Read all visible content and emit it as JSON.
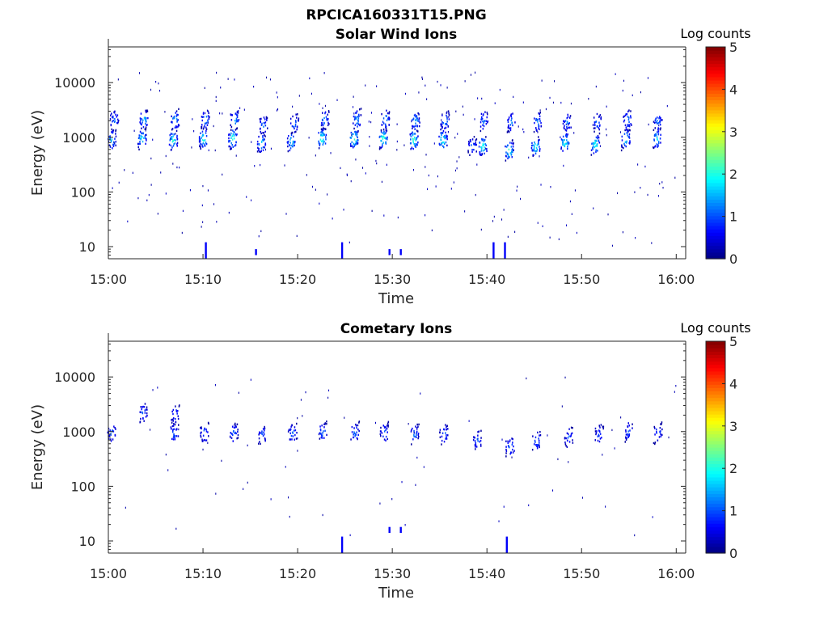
{
  "figure": {
    "title": "RPCICA160331T15.PNG"
  },
  "chart_data": [
    {
      "type": "heatmap",
      "title": "Solar Wind Ions",
      "xlabel": "Time",
      "ylabel": "Energy (eV)",
      "y_scale": "log",
      "ylim": [
        6,
        45000
      ],
      "xlim": [
        "15:00",
        "16:01"
      ],
      "x_ticks": [
        "15:00",
        "15:10",
        "15:20",
        "15:30",
        "15:40",
        "15:50",
        "16:00"
      ],
      "y_ticks": [
        "10",
        "100",
        "1000",
        "10000"
      ],
      "colorbar": {
        "label": "Log counts",
        "range": [
          0,
          5
        ],
        "ticks": [
          "0",
          "1",
          "2",
          "3",
          "4",
          "5"
        ],
        "colormap": "jet"
      },
      "grid": false,
      "sweeps_min": [
        0.2,
        3.7,
        6.8,
        9.9,
        13.1,
        16.2,
        19.3,
        22.5,
        25.7,
        28.8,
        31.9,
        35.0,
        38.2,
        41.4,
        44.5,
        47.6,
        50.8,
        53.9,
        57.1,
        59.8
      ],
      "peaks": [
        {
          "t": 0.3,
          "e": 850,
          "v": 1.8
        },
        {
          "t": 0.6,
          "e": 2000,
          "v": 1.3
        },
        {
          "t": 3.5,
          "e": 900,
          "v": 2.0
        },
        {
          "t": 3.7,
          "e": 2000,
          "v": 1.8
        },
        {
          "t": 6.8,
          "e": 850,
          "v": 2.2
        },
        {
          "t": 7.0,
          "e": 2000,
          "v": 1.6
        },
        {
          "t": 10.0,
          "e": 900,
          "v": 2.3
        },
        {
          "t": 10.2,
          "e": 2000,
          "v": 1.6
        },
        {
          "t": 13.1,
          "e": 900,
          "v": 2.4
        },
        {
          "t": 13.3,
          "e": 2000,
          "v": 1.6
        },
        {
          "t": 16.1,
          "e": 750,
          "v": 1.8
        },
        {
          "t": 16.3,
          "e": 1600,
          "v": 1.3
        },
        {
          "t": 19.3,
          "e": 800,
          "v": 1.9
        },
        {
          "t": 19.6,
          "e": 1700,
          "v": 1.3
        },
        {
          "t": 22.5,
          "e": 900,
          "v": 2.4
        },
        {
          "t": 22.8,
          "e": 2000,
          "v": 1.5
        },
        {
          "t": 25.9,
          "e": 900,
          "v": 2.5
        },
        {
          "t": 26.2,
          "e": 2000,
          "v": 1.6
        },
        {
          "t": 29.0,
          "e": 900,
          "v": 2.4
        },
        {
          "t": 29.2,
          "e": 2000,
          "v": 1.6
        },
        {
          "t": 32.2,
          "e": 850,
          "v": 2.4
        },
        {
          "t": 32.4,
          "e": 1900,
          "v": 1.6
        },
        {
          "t": 35.3,
          "e": 850,
          "v": 2.3
        },
        {
          "t": 35.5,
          "e": 1900,
          "v": 1.5
        },
        {
          "t": 38.4,
          "e": 650,
          "v": 1.3
        },
        {
          "t": 39.5,
          "e": 650,
          "v": 2.2
        },
        {
          "t": 39.6,
          "e": 1900,
          "v": 1.3
        },
        {
          "t": 42.3,
          "e": 550,
          "v": 2.3
        },
        {
          "t": 42.5,
          "e": 1800,
          "v": 1.4
        },
        {
          "t": 45.1,
          "e": 650,
          "v": 2.2
        },
        {
          "t": 45.3,
          "e": 1800,
          "v": 1.4
        },
        {
          "t": 48.2,
          "e": 750,
          "v": 2.2
        },
        {
          "t": 48.4,
          "e": 1800,
          "v": 1.3
        },
        {
          "t": 51.4,
          "e": 700,
          "v": 2.2
        },
        {
          "t": 51.6,
          "e": 1800,
          "v": 1.3
        },
        {
          "t": 54.6,
          "e": 900,
          "v": 2.0
        },
        {
          "t": 54.8,
          "e": 2000,
          "v": 1.4
        },
        {
          "t": 57.9,
          "e": 900,
          "v": 1.9
        },
        {
          "t": 58.0,
          "e": 1900,
          "v": 1.3
        }
      ],
      "scattered_counts": 260,
      "low_energy_streaks": [
        {
          "t": 10.2,
          "e": [
            6,
            12
          ]
        },
        {
          "t": 15.5,
          "e": [
            7,
            9
          ]
        },
        {
          "t": 24.6,
          "e": [
            6,
            12
          ]
        },
        {
          "t": 29.6,
          "e": [
            7,
            9
          ]
        },
        {
          "t": 30.8,
          "e": [
            7,
            9
          ]
        },
        {
          "t": 40.6,
          "e": [
            6,
            12
          ]
        },
        {
          "t": 41.8,
          "e": [
            6,
            12
          ]
        }
      ]
    },
    {
      "type": "heatmap",
      "title": "Cometary Ions",
      "xlabel": "Time",
      "ylabel": "Energy (eV)",
      "y_scale": "log",
      "ylim": [
        6,
        45000
      ],
      "xlim": [
        "15:00",
        "16:01"
      ],
      "x_ticks": [
        "15:00",
        "15:10",
        "15:20",
        "15:30",
        "15:40",
        "15:50",
        "16:00"
      ],
      "y_ticks": [
        "10",
        "100",
        "1000",
        "10000"
      ],
      "colorbar": {
        "label": "Log counts",
        "range": [
          0,
          5
        ],
        "ticks": [
          "0",
          "1",
          "2",
          "3",
          "4",
          "5"
        ],
        "colormap": "jet"
      },
      "grid": false,
      "sweeps_min": [
        0.2,
        3.7,
        6.8,
        9.9,
        13.1,
        16.2,
        19.3,
        22.5,
        25.7,
        28.8,
        31.9,
        35.0,
        38.2,
        41.4,
        44.5,
        47.6,
        50.8,
        53.9,
        57.1,
        59.8
      ],
      "peaks": [
        {
          "t": 0.3,
          "e": 900,
          "v": 1.2
        },
        {
          "t": 3.6,
          "e": 2100,
          "v": 1.2
        },
        {
          "t": 6.9,
          "e": 900,
          "v": 1.2
        },
        {
          "t": 7.0,
          "e": 2000,
          "v": 1.1
        },
        {
          "t": 10.1,
          "e": 900,
          "v": 1.2
        },
        {
          "t": 13.2,
          "e": 900,
          "v": 1.3
        },
        {
          "t": 16.2,
          "e": 850,
          "v": 1.1
        },
        {
          "t": 19.4,
          "e": 900,
          "v": 1.2
        },
        {
          "t": 22.6,
          "e": 950,
          "v": 1.3
        },
        {
          "t": 26.0,
          "e": 900,
          "v": 1.3
        },
        {
          "t": 29.1,
          "e": 900,
          "v": 1.2
        },
        {
          "t": 32.3,
          "e": 850,
          "v": 1.3
        },
        {
          "t": 35.4,
          "e": 850,
          "v": 1.2
        },
        {
          "t": 38.9,
          "e": 650,
          "v": 1.2
        },
        {
          "t": 42.4,
          "e": 500,
          "v": 1.3
        },
        {
          "t": 45.2,
          "e": 650,
          "v": 1.2
        },
        {
          "t": 48.6,
          "e": 750,
          "v": 1.1
        },
        {
          "t": 51.8,
          "e": 850,
          "v": 1.1
        },
        {
          "t": 54.9,
          "e": 950,
          "v": 1.1
        },
        {
          "t": 58.0,
          "e": 900,
          "v": 1.1
        }
      ],
      "scattered_counts": 70,
      "low_energy_streaks": [
        {
          "t": 24.6,
          "e": [
            6,
            12
          ]
        },
        {
          "t": 29.6,
          "e": [
            14,
            18
          ]
        },
        {
          "t": 30.8,
          "e": [
            14,
            18
          ]
        },
        {
          "t": 42.0,
          "e": [
            6,
            12
          ]
        }
      ]
    }
  ]
}
